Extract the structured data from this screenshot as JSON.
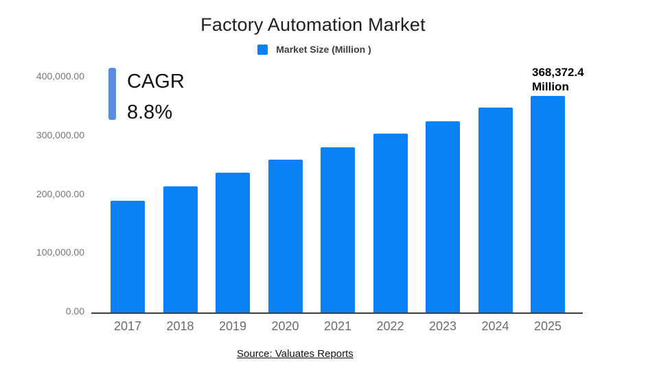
{
  "page": {
    "title": "Factory Automation Market",
    "source": "Source: Valuates Reports"
  },
  "legend": {
    "label": "Market Size (Million )"
  },
  "annotations": {
    "cagr_label": "CAGR",
    "cagr_value": "8.8%",
    "final_value_line1": "368,372.4",
    "final_value_line2": "Million"
  },
  "colors": {
    "bar": "#0a80f5",
    "cagr_accent": "#5b8ce4",
    "title_text": "#1f1f1f",
    "axis_text": "#757575",
    "axis_line": "#3c4043"
  },
  "chart_data": {
    "type": "bar",
    "title": "Factory Automation Market",
    "categories": [
      "2017",
      "2018",
      "2019",
      "2020",
      "2021",
      "2022",
      "2023",
      "2024",
      "2025"
    ],
    "series": [
      {
        "name": "Market Size (Million )",
        "values": [
          190000,
          214500,
          238500,
          260000,
          281500,
          304500,
          325000,
          348500,
          368372.4
        ]
      }
    ],
    "data_labels": {
      "2025": "368,372.4 Million"
    },
    "xlabel": "",
    "ylabel": "",
    "ylim": [
      0,
      400000
    ],
    "y_ticks": [
      0,
      100000,
      200000,
      300000,
      400000
    ],
    "y_tick_labels": [
      "0.00",
      "100,000.00",
      "200,000.00",
      "300,000.00",
      "400,000.00"
    ],
    "grid": false,
    "legend_position": "top",
    "annotation": "CAGR 8.8%"
  }
}
